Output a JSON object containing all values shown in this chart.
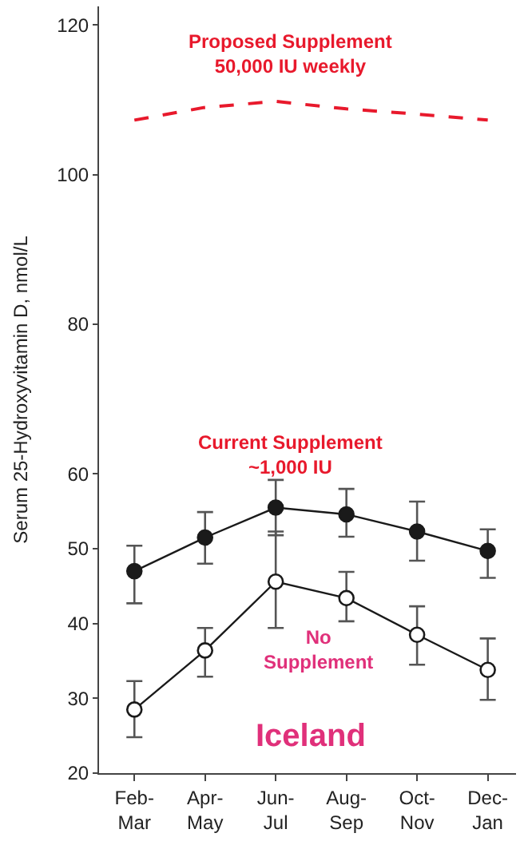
{
  "chart_data": {
    "type": "line",
    "ylabel": "Serum 25-Hydroxyvitamin D, nmol/L",
    "categories": [
      "Feb-\nMar",
      "Apr-\nMay",
      "Jun-\nJul",
      "Aug-\nSep",
      "Oct-\nNov",
      "Dec-\nJan"
    ],
    "series": [
      {
        "color": "#e8192c",
        "line_style": "dashed",
        "marker": "none",
        "values": [
          107.3,
          109.0,
          109.8,
          108.8,
          108.1,
          107.3
        ]
      },
      {
        "color": "#1a1a1a",
        "line_style": "solid",
        "marker": "circle",
        "values": [
          47.0,
          51.5,
          55.5,
          54.6,
          52.3,
          49.7
        ],
        "errors": [
          [
            42.7,
            50.4
          ],
          [
            48.0,
            54.9
          ],
          [
            51.8,
            59.2
          ],
          [
            51.6,
            58.0
          ],
          [
            48.4,
            56.3
          ],
          [
            46.1,
            52.6
          ]
        ]
      },
      {
        "color": "#1a1a1a",
        "line_style": "solid",
        "marker": "circle",
        "values": [
          28.5,
          36.4,
          45.6,
          43.4,
          38.5,
          33.8
        ],
        "errors": [
          [
            24.8,
            32.3
          ],
          [
            32.9,
            39.4
          ],
          [
            39.4,
            52.3
          ],
          [
            40.3,
            46.9
          ],
          [
            34.5,
            42.3
          ],
          [
            29.8,
            38.0
          ]
        ]
      }
    ],
    "ylim": [
      20,
      122.5
    ],
    "yticks": [
      20,
      30,
      40,
      50,
      60,
      80,
      100,
      120
    ],
    "annotations": [
      "Proposed Supplement\n50,000 IU weekly",
      "Current Supplement\n~1,000 IU",
      "No\nSupplement",
      "Iceland"
    ]
  }
}
